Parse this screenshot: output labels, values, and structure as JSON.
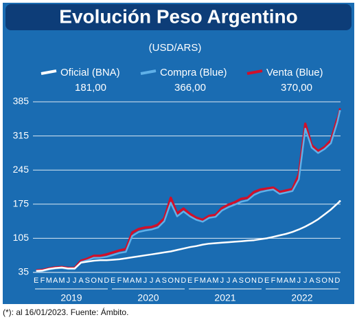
{
  "chart_data": {
    "type": "line",
    "title": "Evolución Peso Argentino",
    "subtitle": "(USD/ARS)",
    "footnote": "(*): al 16/01/2023. Fuente: Ámbito.",
    "categories": [
      "E",
      "F",
      "M",
      "A",
      "M",
      "J",
      "J",
      "A",
      "S",
      "O",
      "N",
      "D",
      "E",
      "F",
      "M",
      "A",
      "M",
      "J",
      "J",
      "A",
      "S",
      "O",
      "N",
      "D",
      "E",
      "F",
      "M",
      "A",
      "M",
      "J",
      "J",
      "A",
      "S",
      "O",
      "N",
      "D",
      "E",
      "F",
      "M",
      "A",
      "M",
      "J",
      "J",
      "A",
      "S",
      "O",
      "N",
      "D"
    ],
    "years": [
      "2019",
      "2020",
      "2021",
      "2022"
    ],
    "ylim": [
      35,
      385
    ],
    "yticks": [
      35,
      105,
      175,
      245,
      315,
      385
    ],
    "grid": true,
    "series": [
      {
        "name": "Venta (Blue)",
        "color": "#d0102a",
        "latest": {
          "value": 370,
          "label": "370,00"
        },
        "values": [
          39,
          40,
          43,
          45,
          46,
          44,
          44,
          59,
          63,
          69,
          69,
          72,
          76,
          80,
          83,
          117,
          124,
          127,
          128,
          133,
          146,
          188,
          156,
          166,
          155,
          147,
          143,
          151,
          153,
          167,
          174,
          179,
          186,
          188,
          200,
          205,
          207,
          209,
          200,
          203,
          206,
          236,
          340,
          296,
          284,
          292,
          306,
          350
        ]
      },
      {
        "name": "Compra (Blue)",
        "color": "#5fb0e8",
        "latest": {
          "value": 366,
          "label": "366,00"
        },
        "values": [
          37,
          38,
          41,
          43,
          44,
          42,
          42,
          56,
          60,
          65,
          65,
          67,
          71,
          75,
          77,
          110,
          118,
          121,
          123,
          127,
          140,
          178,
          150,
          160,
          150,
          143,
          139,
          147,
          149,
          162,
          169,
          174,
          180,
          183,
          194,
          200,
          203,
          205,
          196,
          199,
          202,
          226,
          330,
          291,
          280,
          288,
          300,
          343
        ]
      },
      {
        "name": "Oficial (BNA)",
        "color": "#ffffff",
        "latest": {
          "value": 181,
          "label": "181,00"
        },
        "values": [
          38,
          39,
          42,
          44,
          45,
          43,
          43,
          55,
          57,
          59,
          60,
          60,
          61,
          62,
          64,
          66,
          68,
          70,
          72,
          74,
          76,
          78,
          81,
          84,
          87,
          89,
          92,
          94,
          95,
          96,
          97,
          98,
          99,
          100,
          101,
          103,
          105,
          108,
          111,
          114,
          118,
          123,
          129,
          136,
          144,
          154,
          164,
          176
        ]
      }
    ]
  }
}
